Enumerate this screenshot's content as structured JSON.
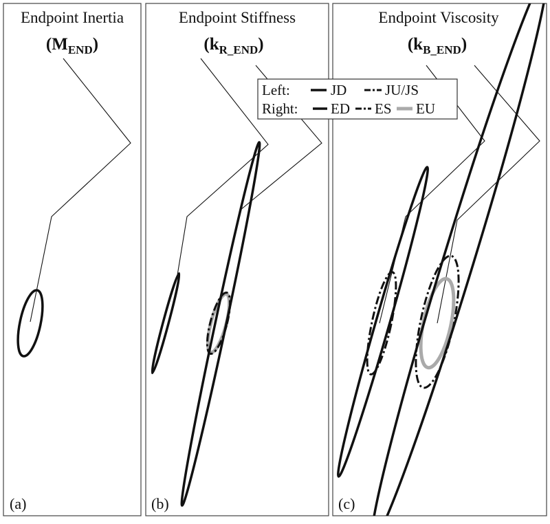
{
  "panels": [
    {
      "title": "Endpoint Inertia",
      "symbol": {
        "base": "(M",
        "sub": "END",
        "close": ")"
      },
      "label": "(a)"
    },
    {
      "title": "Endpoint Stiffness",
      "symbol": {
        "base": "(k",
        "sub": "R_END",
        "close": ")"
      },
      "label": "(b)"
    },
    {
      "title": "Endpoint Viscosity",
      "symbol": {
        "base": "(k",
        "sub": "B_END",
        "close": ")"
      },
      "label": "(c)"
    }
  ],
  "legend": {
    "left": {
      "heading": "Left:",
      "items": [
        "JD",
        "JU/JS"
      ]
    },
    "right": {
      "heading": "Right:",
      "items": [
        "ED",
        "ES",
        "EU"
      ]
    }
  }
}
